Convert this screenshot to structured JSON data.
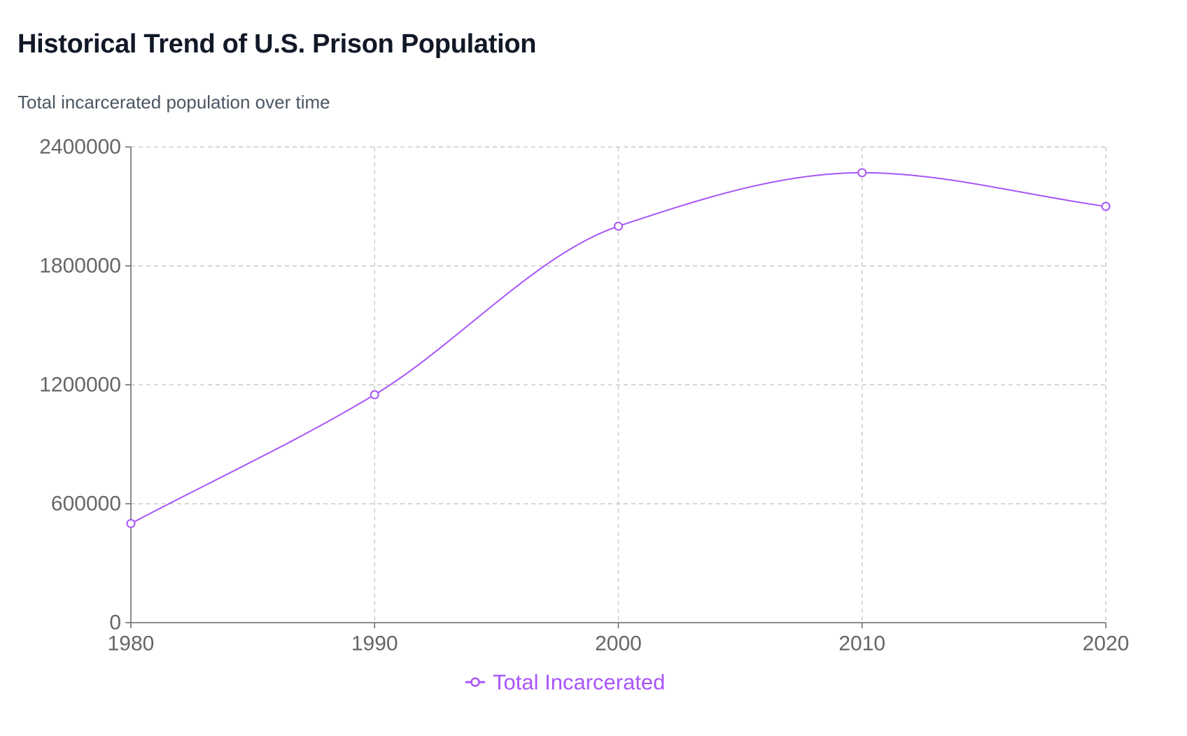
{
  "header": {
    "title": "Historical Trend of U.S. Prison Population",
    "subtitle": "Total incarcerated population over time"
  },
  "colors": {
    "series": "#a855f7",
    "grid": "#cccccc",
    "axis": "#666666",
    "title": "#111827",
    "subtitle": "#4b5563"
  },
  "chart_data": {
    "type": "line",
    "x": [
      1980,
      1990,
      2000,
      2010,
      2020
    ],
    "x_tick_labels": [
      "1980",
      "1990",
      "2000",
      "2010",
      "2020"
    ],
    "y_tick_values": [
      0,
      600000,
      1200000,
      1800000,
      2400000
    ],
    "y_tick_labels": [
      "0",
      "600000",
      "1200000",
      "1800000",
      "2400000"
    ],
    "ylim": [
      0,
      2400000
    ],
    "series": [
      {
        "name": "Total Incarcerated",
        "values": [
          500000,
          1150000,
          2000000,
          2270000,
          2100000
        ],
        "color": "#a855f7",
        "marker": "open-circle",
        "smooth": true
      }
    ],
    "grid": true,
    "grid_style": "dashed",
    "legend_position": "bottom-center"
  }
}
